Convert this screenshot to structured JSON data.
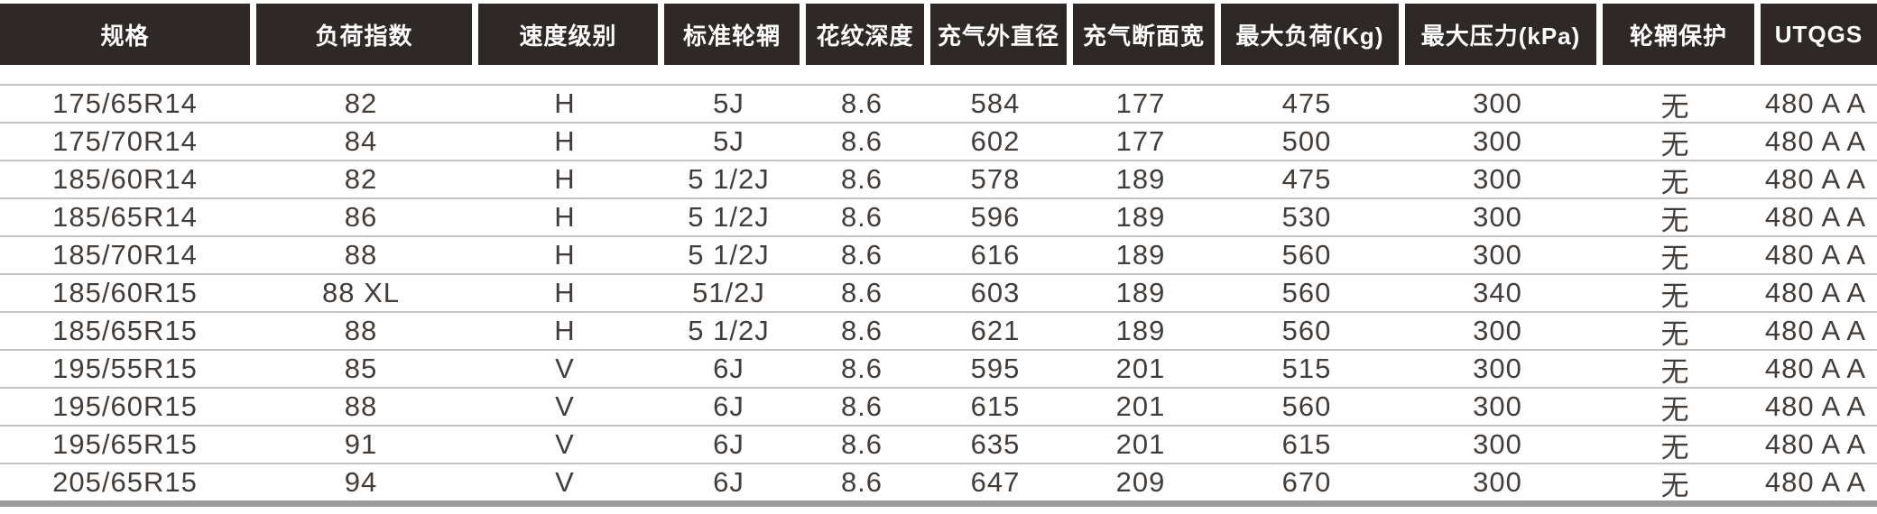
{
  "table": {
    "columns": [
      "规格",
      "负荷指数",
      "速度级别",
      "标准轮辋",
      "花纹深度",
      "充气外直径",
      "充气断面宽",
      "最大负荷(Kg)",
      "最大压力(kPa)",
      "轮辋保护",
      "UTQGS"
    ],
    "rows": [
      [
        "175/65R14",
        "82",
        "H",
        "5J",
        "8.6",
        "584",
        "177",
        "475",
        "300",
        "无",
        "480 A A"
      ],
      [
        "175/70R14",
        "84",
        "H",
        "5J",
        "8.6",
        "602",
        "177",
        "500",
        "300",
        "无",
        "480 A A"
      ],
      [
        "185/60R14",
        "82",
        "H",
        "5 1/2J",
        "8.6",
        "578",
        "189",
        "475",
        "300",
        "无",
        "480 A A"
      ],
      [
        "185/65R14",
        "86",
        "H",
        "5 1/2J",
        "8.6",
        "596",
        "189",
        "530",
        "300",
        "无",
        "480 A A"
      ],
      [
        "185/70R14",
        "88",
        "H",
        "5 1/2J",
        "8.6",
        "616",
        "189",
        "560",
        "300",
        "无",
        "480 A A"
      ],
      [
        "185/60R15",
        "88 XL",
        "H",
        "51/2J",
        "8.6",
        "603",
        "189",
        "560",
        "340",
        "无",
        "480 A A"
      ],
      [
        "185/65R15",
        "88",
        "H",
        "5 1/2J",
        "8.6",
        "621",
        "189",
        "560",
        "300",
        "无",
        "480 A A"
      ],
      [
        "195/55R15",
        "85",
        "V",
        "6J",
        "8.6",
        "595",
        "201",
        "515",
        "300",
        "无",
        "480 A A"
      ],
      [
        "195/60R15",
        "88",
        "V",
        "6J",
        "8.6",
        "615",
        "201",
        "560",
        "300",
        "无",
        "480 A A"
      ],
      [
        "195/65R15",
        "91",
        "V",
        "6J",
        "8.6",
        "635",
        "201",
        "615",
        "300",
        "无",
        "480 A A"
      ],
      [
        "205/65R15",
        "94",
        "V",
        "6J",
        "8.6",
        "647",
        "209",
        "670",
        "300",
        "无",
        "480 A A"
      ]
    ]
  },
  "colors": {
    "header_bg": "#2e2927",
    "header_text": "#ffffff",
    "body_text": "#433d3a",
    "row_separator": "#c3c2c1",
    "bottom_bar": "#9c9b9a"
  }
}
